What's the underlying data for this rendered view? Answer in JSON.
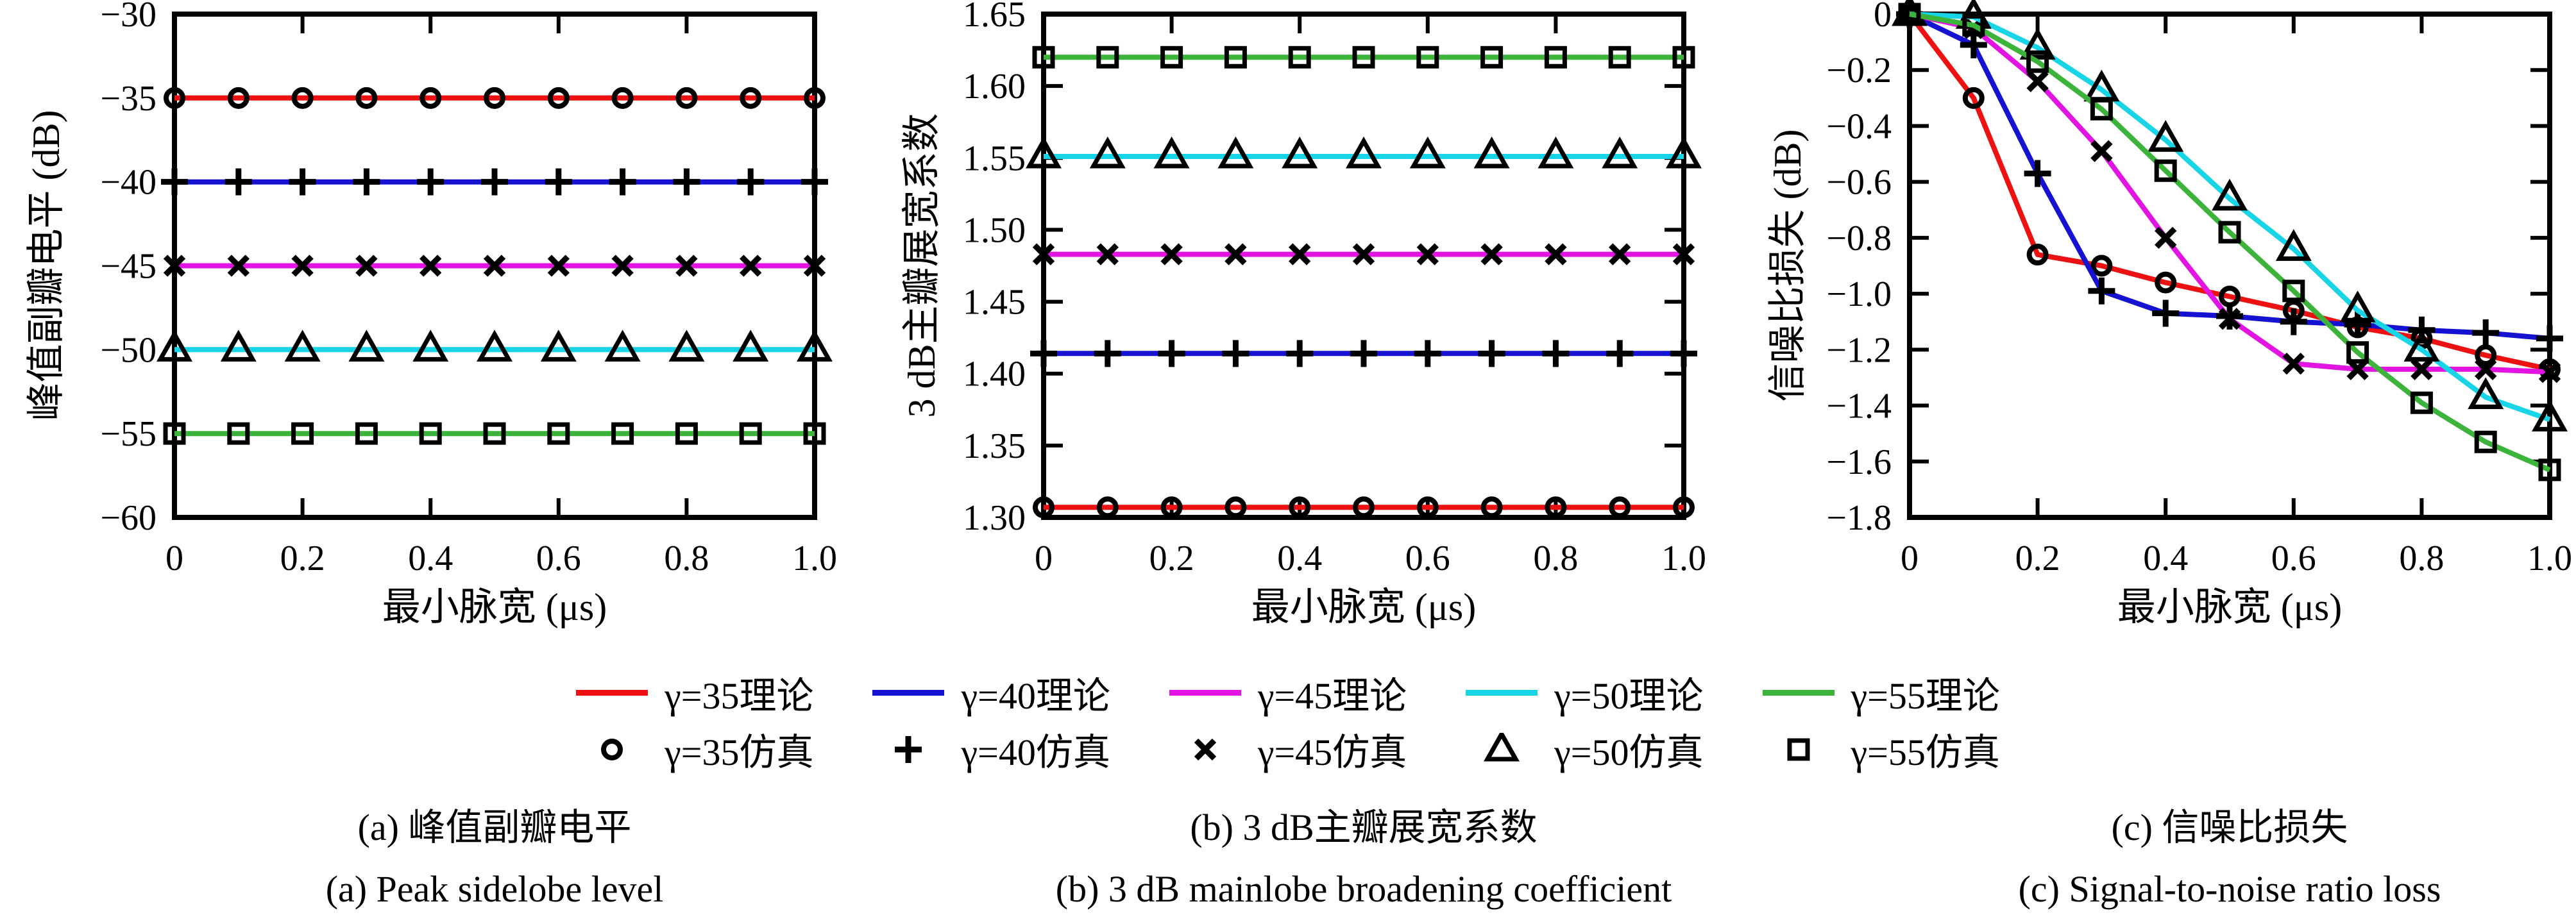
{
  "figure": {
    "xlabel": "最小脉宽 (μs)",
    "captions": {
      "a": {
        "zh": "(a) 峰值副瓣电平",
        "en": "(a) Peak sidelobe level"
      },
      "b": {
        "zh": "(b) 3 dB主瓣展宽系数",
        "en": "(b) 3 dB mainlobe broadening coefficient"
      },
      "c": {
        "zh": "(c) 信噪比损失",
        "en": "(c) Signal-to-noise ratio loss"
      }
    }
  },
  "legend": {
    "theory": [
      {
        "label": "γ=35理论",
        "color": "#ee1111"
      },
      {
        "label": "γ=40理论",
        "color": "#1512d2"
      },
      {
        "label": "γ=45理论",
        "color": "#e214e2"
      },
      {
        "label": "γ=50理论",
        "color": "#17d4e6"
      },
      {
        "label": "γ=55理论",
        "color": "#3cb43c"
      }
    ],
    "sim": [
      {
        "label": "γ=35仿真",
        "marker": "circle"
      },
      {
        "label": "γ=40仿真",
        "marker": "plus"
      },
      {
        "label": "γ=45仿真",
        "marker": "cross"
      },
      {
        "label": "γ=50仿真",
        "marker": "triangle"
      },
      {
        "label": "γ=55仿真",
        "marker": "square"
      }
    ]
  },
  "chart_data": [
    {
      "id": "a",
      "type": "line",
      "title": "峰值副瓣电平",
      "ylabel": "峰值副瓣电平 (dB)",
      "xlabel": "最小脉宽 (μs)",
      "xlim": [
        0,
        1.0
      ],
      "ylim": [
        -60,
        -30
      ],
      "xticks": {
        "values": [
          0,
          0.2,
          0.4,
          0.6,
          0.8,
          1.0
        ],
        "labels": [
          "0",
          "0.2",
          "0.4",
          "0.6",
          "0.8",
          "1.0"
        ]
      },
      "yticks": {
        "values": [
          -30,
          -35,
          -40,
          -45,
          -50,
          -55,
          -60
        ],
        "labels": [
          "−30",
          "−35",
          "−40",
          "−45",
          "−50",
          "−55",
          "−60"
        ]
      },
      "x": [
        0,
        0.1,
        0.2,
        0.3,
        0.4,
        0.5,
        0.6,
        0.7,
        0.8,
        0.9,
        1.0
      ],
      "series": [
        {
          "name": "γ=35",
          "color": "#ee1111",
          "marker": "circle",
          "values": [
            -35,
            -35,
            -35,
            -35,
            -35,
            -35,
            -35,
            -35,
            -35,
            -35,
            -35
          ]
        },
        {
          "name": "γ=40",
          "color": "#1512d2",
          "marker": "plus",
          "values": [
            -40,
            -40,
            -40,
            -40,
            -40,
            -40,
            -40,
            -40,
            -40,
            -40,
            -40
          ]
        },
        {
          "name": "γ=45",
          "color": "#e214e2",
          "marker": "cross",
          "values": [
            -45,
            -45,
            -45,
            -45,
            -45,
            -45,
            -45,
            -45,
            -45,
            -45,
            -45
          ]
        },
        {
          "name": "γ=50",
          "color": "#17d4e6",
          "marker": "triangle",
          "values": [
            -50,
            -50,
            -50,
            -50,
            -50,
            -50,
            -50,
            -50,
            -50,
            -50,
            -50
          ]
        },
        {
          "name": "γ=55",
          "color": "#3cb43c",
          "marker": "square",
          "values": [
            -55,
            -55,
            -55,
            -55,
            -55,
            -55,
            -55,
            -55,
            -55,
            -55,
            -55
          ]
        }
      ]
    },
    {
      "id": "b",
      "type": "line",
      "title": "3 dB主瓣展宽系数",
      "ylabel": "3 dB主瓣展宽系数",
      "xlabel": "最小脉宽 (μs)",
      "xlim": [
        0,
        1.0
      ],
      "ylim": [
        1.3,
        1.65
      ],
      "xticks": {
        "values": [
          0,
          0.2,
          0.4,
          0.6,
          0.8,
          1.0
        ],
        "labels": [
          "0",
          "0.2",
          "0.4",
          "0.6",
          "0.8",
          "1.0"
        ]
      },
      "yticks": {
        "values": [
          1.65,
          1.6,
          1.55,
          1.5,
          1.45,
          1.4,
          1.35,
          1.3
        ],
        "labels": [
          "1.65",
          "1.60",
          "1.55",
          "1.50",
          "1.45",
          "1.40",
          "1.35",
          "1.30"
        ]
      },
      "x": [
        0,
        0.1,
        0.2,
        0.3,
        0.4,
        0.5,
        0.6,
        0.7,
        0.8,
        0.9,
        1.0
      ],
      "series": [
        {
          "name": "γ=35",
          "color": "#ee1111",
          "marker": "circle",
          "values": [
            1.307,
            1.307,
            1.307,
            1.307,
            1.307,
            1.307,
            1.307,
            1.307,
            1.307,
            1.307,
            1.307
          ]
        },
        {
          "name": "γ=40",
          "color": "#1512d2",
          "marker": "plus",
          "values": [
            1.414,
            1.414,
            1.414,
            1.414,
            1.414,
            1.414,
            1.414,
            1.414,
            1.414,
            1.414,
            1.414
          ]
        },
        {
          "name": "γ=45",
          "color": "#e214e2",
          "marker": "cross",
          "values": [
            1.483,
            1.483,
            1.483,
            1.483,
            1.483,
            1.483,
            1.483,
            1.483,
            1.483,
            1.483,
            1.483
          ]
        },
        {
          "name": "γ=50",
          "color": "#17d4e6",
          "marker": "triangle",
          "values": [
            1.551,
            1.551,
            1.551,
            1.551,
            1.551,
            1.551,
            1.551,
            1.551,
            1.551,
            1.551,
            1.551
          ]
        },
        {
          "name": "γ=55",
          "color": "#3cb43c",
          "marker": "square",
          "values": [
            1.62,
            1.62,
            1.62,
            1.62,
            1.62,
            1.62,
            1.62,
            1.62,
            1.62,
            1.62,
            1.62
          ]
        }
      ]
    },
    {
      "id": "c",
      "type": "line",
      "title": "信噪比损失",
      "ylabel": "信噪比损失 (dB)",
      "xlabel": "最小脉宽 (μs)",
      "xlim": [
        0,
        1.0
      ],
      "ylim": [
        -1.8,
        0
      ],
      "xticks": {
        "values": [
          0,
          0.2,
          0.4,
          0.6,
          0.8,
          1.0
        ],
        "labels": [
          "0",
          "0.2",
          "0.4",
          "0.6",
          "0.8",
          "1.0"
        ]
      },
      "yticks": {
        "values": [
          0,
          -0.2,
          -0.4,
          -0.6,
          -0.8,
          -1.0,
          -1.2,
          -1.4,
          -1.6,
          -1.8
        ],
        "labels": [
          "0",
          "−0.2",
          "−0.4",
          "−0.6",
          "−0.8",
          "−1.0",
          "−1.2",
          "−1.4",
          "−1.6",
          "−1.8"
        ]
      },
      "x": [
        0,
        0.1,
        0.2,
        0.3,
        0.4,
        0.5,
        0.6,
        0.7,
        0.8,
        0.9,
        1.0
      ],
      "series": [
        {
          "name": "γ=35",
          "color": "#ee1111",
          "marker": "circle",
          "values": [
            0,
            -0.3,
            -0.86,
            -0.9,
            -0.96,
            -1.01,
            -1.06,
            -1.12,
            -1.16,
            -1.22,
            -1.27
          ]
        },
        {
          "name": "γ=40",
          "color": "#1512d2",
          "marker": "plus",
          "values": [
            0,
            -0.11,
            -0.57,
            -0.99,
            -1.07,
            -1.08,
            -1.1,
            -1.11,
            -1.13,
            -1.14,
            -1.16
          ]
        },
        {
          "name": "γ=45",
          "color": "#e214e2",
          "marker": "cross",
          "values": [
            0,
            -0.05,
            -0.24,
            -0.49,
            -0.8,
            -1.09,
            -1.25,
            -1.27,
            -1.27,
            -1.27,
            -1.28
          ]
        },
        {
          "name": "γ=50",
          "color": "#17d4e6",
          "marker": "triangle",
          "values": [
            0,
            -0.01,
            -0.12,
            -0.27,
            -0.45,
            -0.66,
            -0.84,
            -1.06,
            -1.2,
            -1.37,
            -1.45
          ]
        },
        {
          "name": "γ=55",
          "color": "#3cb43c",
          "marker": "square",
          "values": [
            0,
            -0.04,
            -0.17,
            -0.34,
            -0.56,
            -0.78,
            -0.99,
            -1.21,
            -1.39,
            -1.53,
            -1.63
          ]
        }
      ]
    }
  ]
}
